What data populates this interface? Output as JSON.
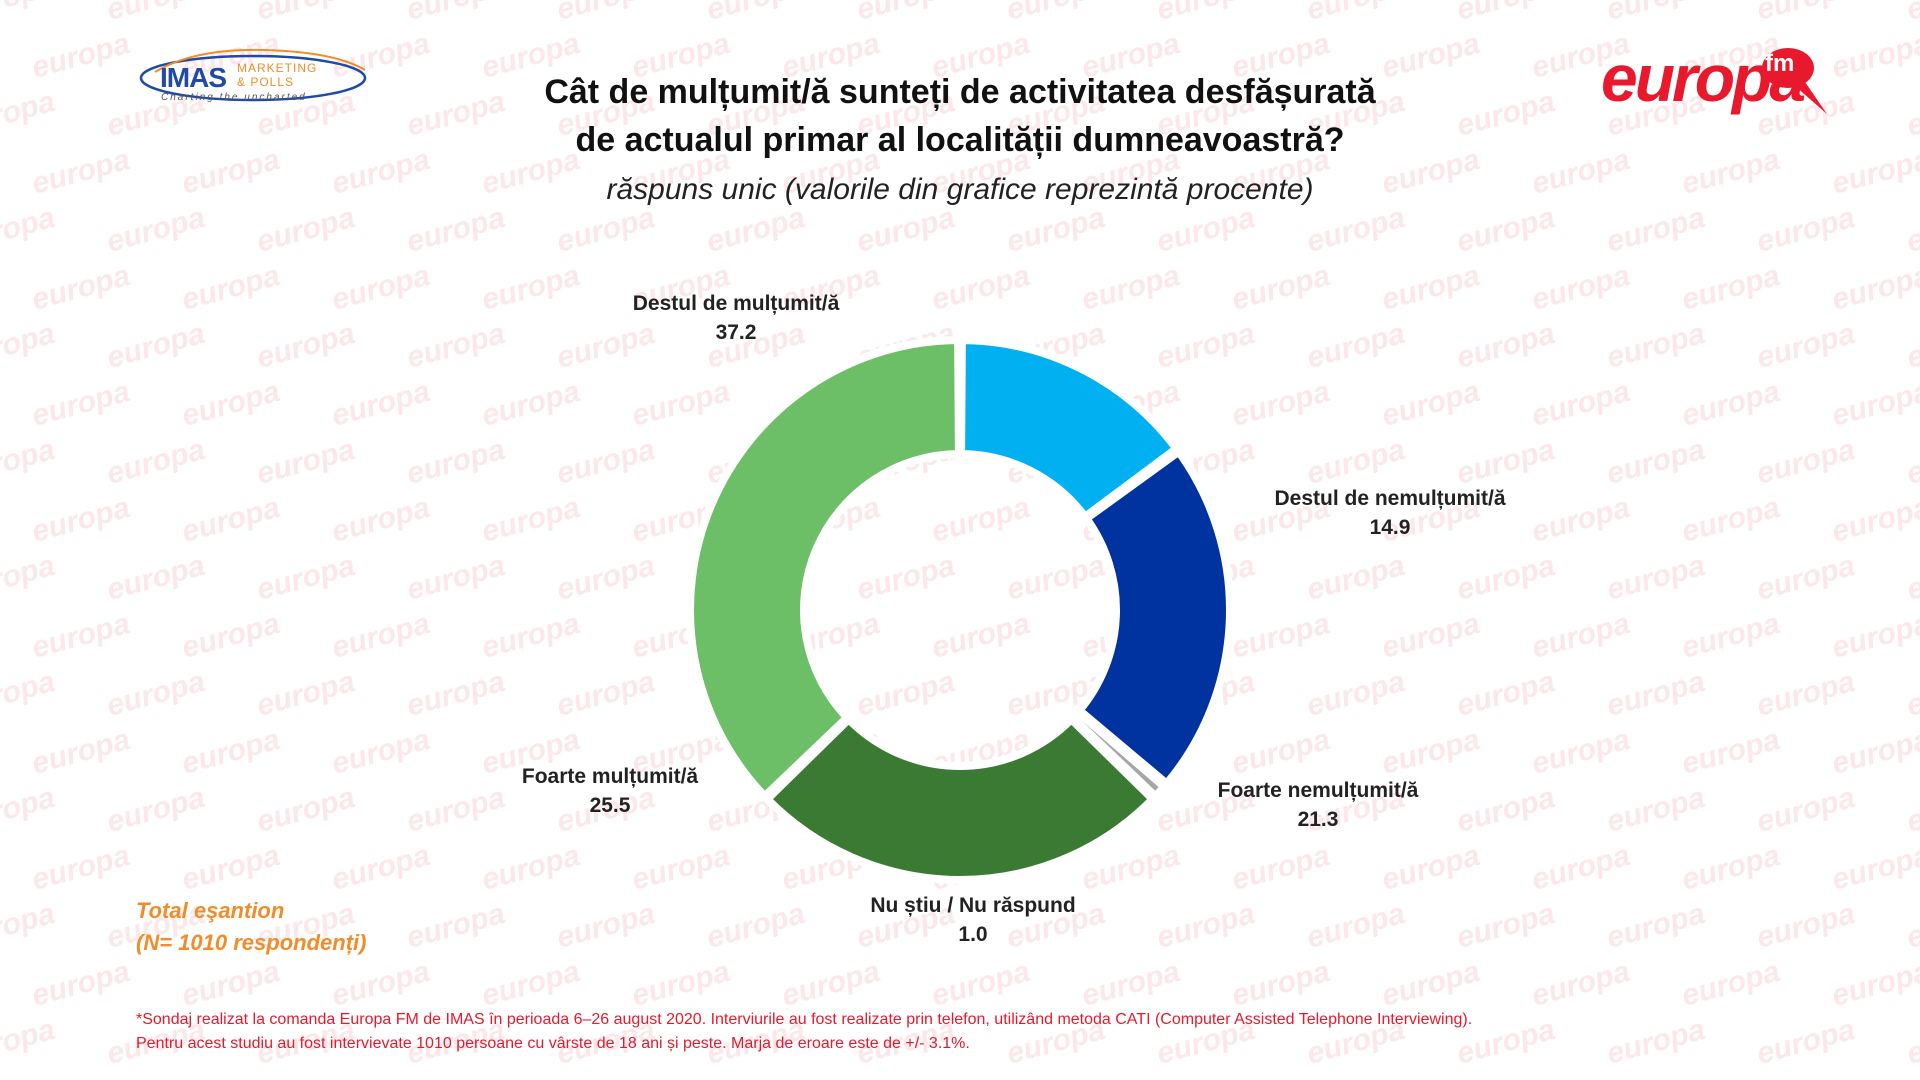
{
  "header": {
    "title_line1": "Cât de mulțumit/ă sunteți de activitatea desfășurată",
    "title_line2": "de actualul primar al localității dumneavoastră?",
    "subtitle": "răspuns unic (valorile din grafice reprezintă procente)"
  },
  "logos": {
    "imas": {
      "word": "IMAS",
      "line1": "MARKETING",
      "line2": "& POLLS",
      "tagline": "Charting the uncharted"
    },
    "europa": {
      "word": "europa",
      "fm": "fm",
      "watermark_text": "europa"
    }
  },
  "chart_data": {
    "type": "pie",
    "donut": true,
    "start": "top",
    "direction": "clockwise",
    "slices": [
      {
        "label": "Destul de nemulțumit/ă",
        "value": 14.9,
        "color": "#00b0f0"
      },
      {
        "label": "Foarte nemulțumit/ă",
        "value": 21.3,
        "color": "#0033a0"
      },
      {
        "label": "Nu știu / Nu răspund",
        "value": 1.0,
        "color": "#a6a6a6"
      },
      {
        "label": "Foarte mulțumit/ă",
        "value": 25.5,
        "color": "#3a7a33"
      },
      {
        "label": "Destul de mulțumit/ă",
        "value": 37.2,
        "color": "#6dbf67"
      }
    ]
  },
  "sample": {
    "line1": "Total eşantion",
    "line2": "(N= 1010 respondenți)"
  },
  "footnote": {
    "line1": "*Sondaj realizat la comanda Europa FM de IMAS în perioada  6–26 august 2020. Interviurile au fost realizate prin telefon, utilizând metoda CATI (Computer Assisted Telephone Interviewing).",
    "line2": "Pentru acest studiu au fost intervievate 1010 persoane cu vârste de 18 ani și peste. Marja de eroare este de +/- 3.1%."
  },
  "colors": {
    "accent_red": "#e8192c",
    "accent_orange": "#f28c28",
    "imas_blue": "#1f4aa8"
  }
}
